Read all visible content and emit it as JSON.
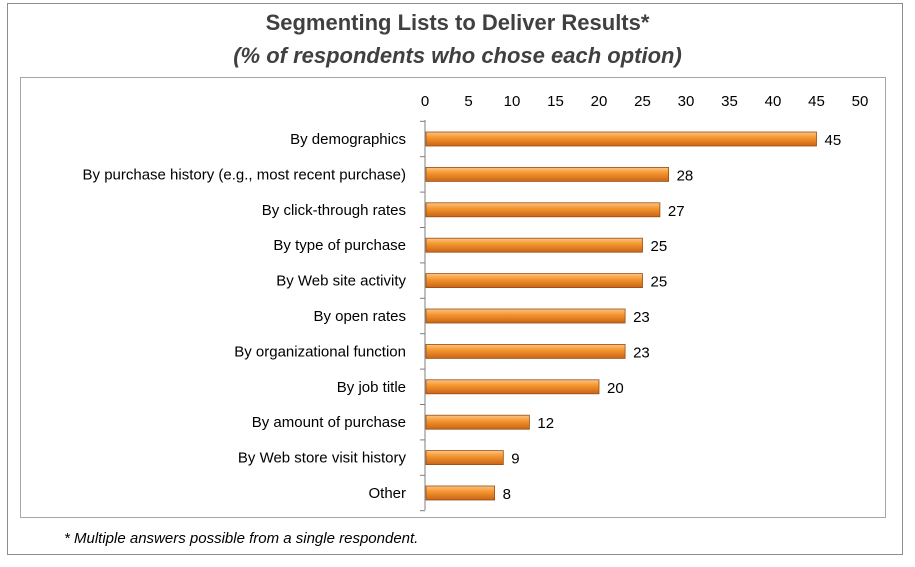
{
  "title": "Segmenting Lists to Deliver Results*",
  "subtitle": "(% of respondents who chose each option)",
  "footnote": "* Multiple answers possible from a single respondent.",
  "colors": {
    "bar_light": "#fbc58a",
    "bar_main": "#f5962d",
    "bar_dark": "#c8651a",
    "bar_edge": "#9a4d0e",
    "text": "#000000",
    "title": "#404040",
    "axis": "#7f7f7f"
  },
  "chart_data": {
    "type": "bar",
    "orientation": "horizontal",
    "title": "Segmenting Lists to Deliver Results*",
    "subtitle": "(% of respondents who chose each option)",
    "xlim": [
      0,
      50
    ],
    "ticks": [
      0,
      5,
      10,
      15,
      20,
      25,
      30,
      35,
      40,
      45,
      50
    ],
    "x_axis_position": "top",
    "grid": false,
    "data_labels": true,
    "categories": [
      "By demographics",
      "By purchase history (e.g., most recent purchase)",
      "By click-through rates",
      "By type of purchase",
      "By Web site activity",
      "By open rates",
      "By organizational function",
      "By job title",
      "By amount of purchase",
      "By Web store visit history",
      "Other"
    ],
    "values": [
      45,
      28,
      27,
      25,
      25,
      23,
      23,
      20,
      12,
      9,
      8
    ]
  }
}
